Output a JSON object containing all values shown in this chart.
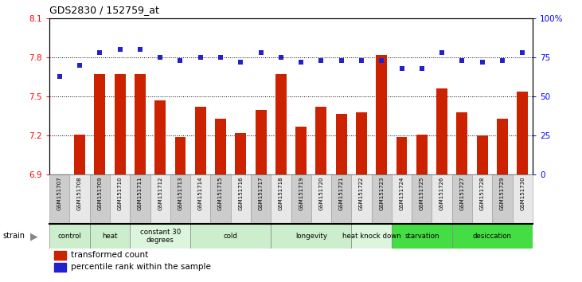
{
  "title": "GDS2830 / 152759_at",
  "samples": [
    "GSM151707",
    "GSM151708",
    "GSM151709",
    "GSM151710",
    "GSM151711",
    "GSM151712",
    "GSM151713",
    "GSM151714",
    "GSM151715",
    "GSM151716",
    "GSM151717",
    "GSM151718",
    "GSM151719",
    "GSM151720",
    "GSM151721",
    "GSM151722",
    "GSM151723",
    "GSM151724",
    "GSM151725",
    "GSM151726",
    "GSM151727",
    "GSM151728",
    "GSM151729",
    "GSM151730"
  ],
  "bar_values": [
    6.9,
    7.21,
    7.67,
    7.67,
    7.67,
    7.47,
    7.19,
    7.42,
    7.33,
    7.22,
    7.4,
    7.67,
    7.27,
    7.42,
    7.37,
    7.38,
    7.82,
    7.19,
    7.21,
    7.56,
    7.38,
    7.2,
    7.33,
    7.54
  ],
  "percentile_values": [
    63,
    70,
    78,
    80,
    80,
    75,
    73,
    75,
    75,
    72,
    78,
    75,
    72,
    73,
    73,
    73,
    73,
    68,
    68,
    78,
    73,
    72,
    73,
    78
  ],
  "ylim_left": [
    6.9,
    8.1
  ],
  "ylim_right": [
    0,
    100
  ],
  "yticks_left": [
    6.9,
    7.2,
    7.5,
    7.8,
    8.1
  ],
  "yticks_right": [
    0,
    25,
    50,
    75,
    100
  ],
  "bar_color": "#CC2200",
  "dot_color": "#2222CC",
  "groups": [
    {
      "label": "control",
      "start": 0,
      "end": 2,
      "color": "#cceecc"
    },
    {
      "label": "heat",
      "start": 2,
      "end": 4,
      "color": "#cceecc"
    },
    {
      "label": "constant 30\ndegrees",
      "start": 4,
      "end": 7,
      "color": "#ddf5dd"
    },
    {
      "label": "cold",
      "start": 7,
      "end": 11,
      "color": "#cceecc"
    },
    {
      "label": "longevity",
      "start": 11,
      "end": 15,
      "color": "#cceecc"
    },
    {
      "label": "heat knock down",
      "start": 15,
      "end": 17,
      "color": "#ddf5dd"
    },
    {
      "label": "starvation",
      "start": 17,
      "end": 20,
      "color": "#44dd44"
    },
    {
      "label": "desiccation",
      "start": 20,
      "end": 24,
      "color": "#44dd44"
    }
  ],
  "tick_bg_even": "#cccccc",
  "tick_bg_odd": "#e8e8e8",
  "legend_bar_label": "transformed count",
  "legend_dot_label": "percentile rank within the sample"
}
